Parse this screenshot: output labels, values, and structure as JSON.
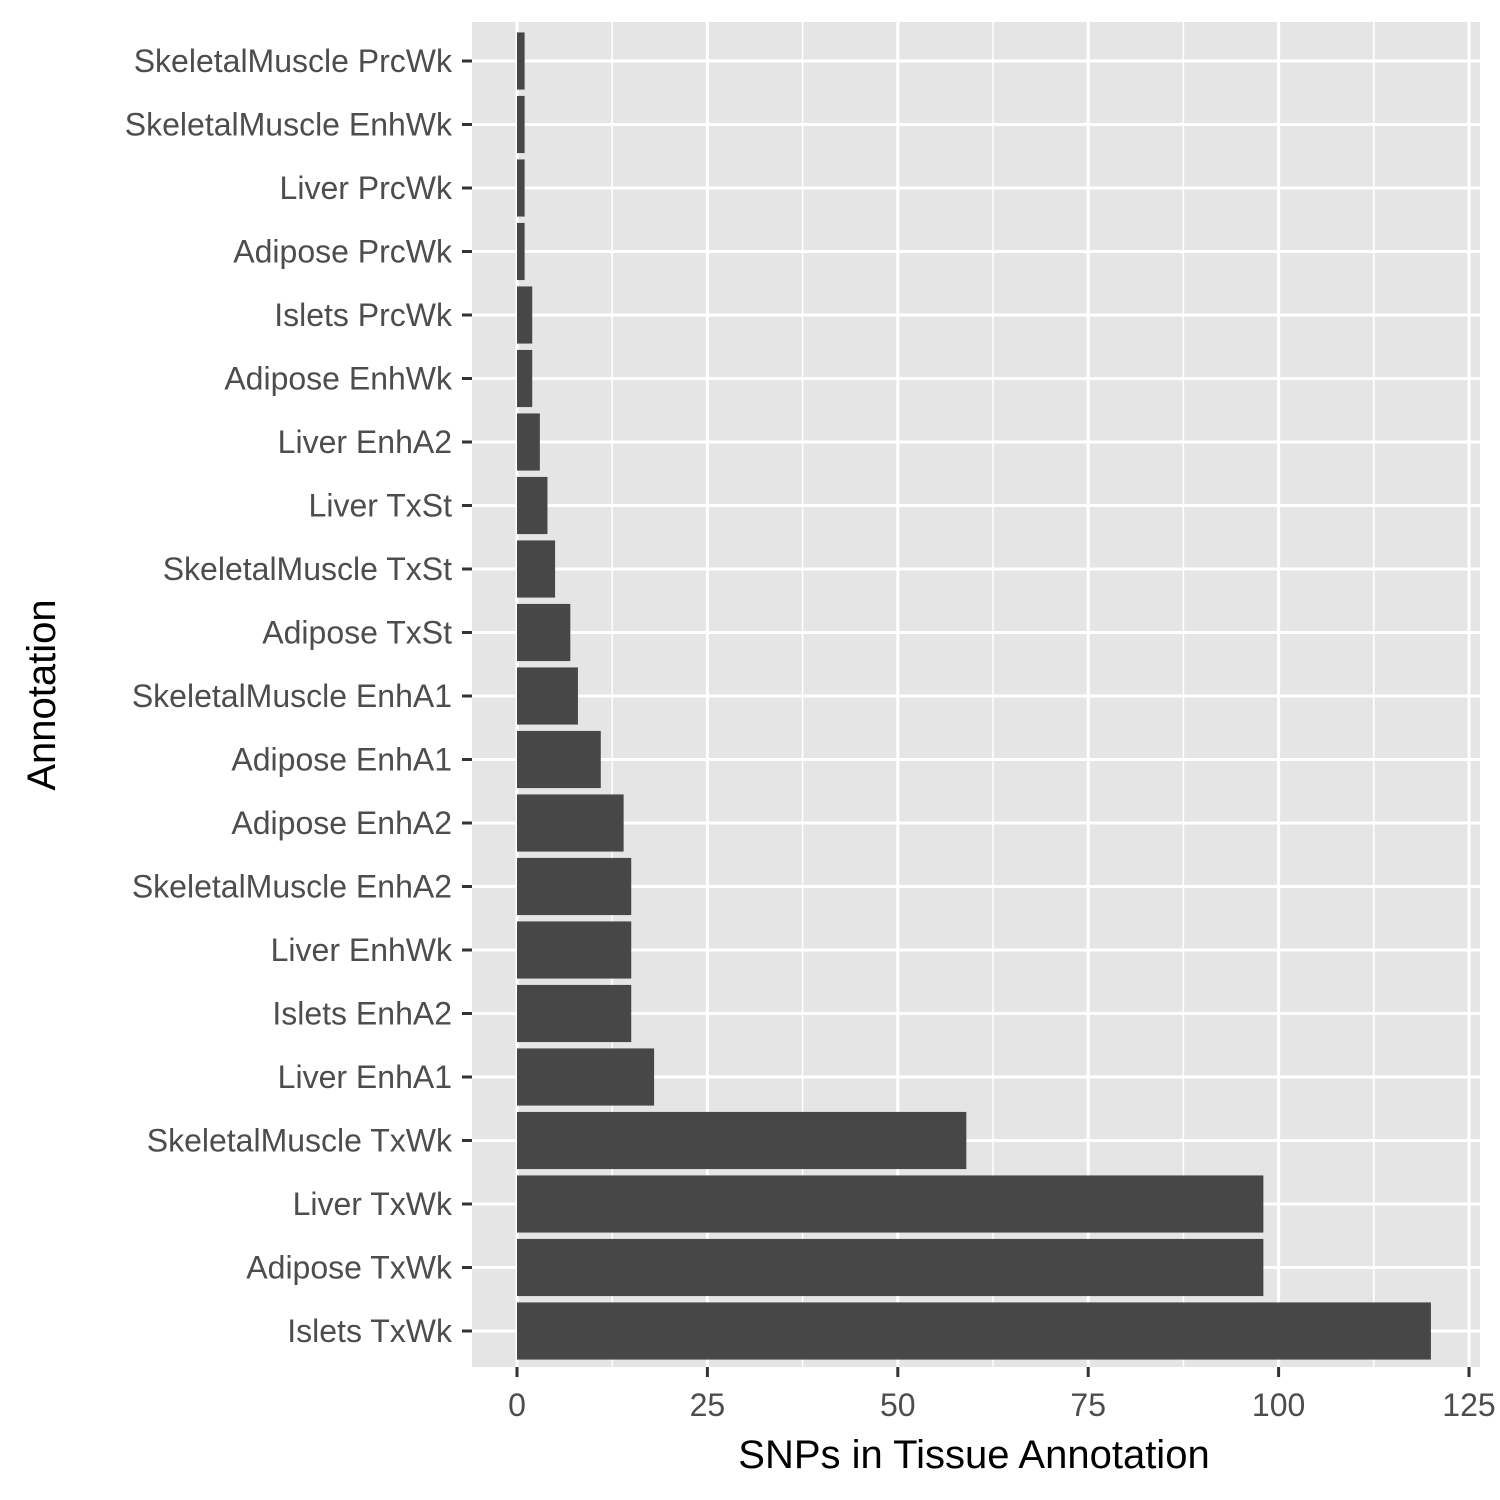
{
  "chart_data": {
    "type": "bar",
    "orientation": "horizontal",
    "title": "",
    "xlabel": "SNPs in Tissue Annotation",
    "ylabel": "Annotation",
    "xlim": [
      0,
      125
    ],
    "x_ticks": [
      0,
      25,
      50,
      75,
      100,
      125
    ],
    "grid": true,
    "legend": "none",
    "colors": {
      "bar": "#474747",
      "panel_background": "#e5e5e5",
      "gridline": "#ffffff",
      "tick_text": "#4d4d4d",
      "axis_title": "#000000"
    },
    "categories": [
      "SkeletalMuscle PrcWk",
      "SkeletalMuscle EnhWk",
      "Liver PrcWk",
      "Adipose PrcWk",
      "Islets PrcWk",
      "Adipose EnhWk",
      "Liver EnhA2",
      "Liver TxSt",
      "SkeletalMuscle TxSt",
      "Adipose TxSt",
      "SkeletalMuscle EnhA1",
      "Adipose EnhA1",
      "Adipose EnhA2",
      "SkeletalMuscle EnhA2",
      "Liver EnhWk",
      "Islets EnhA2",
      "Liver EnhA1",
      "SkeletalMuscle TxWk",
      "Liver TxWk",
      "Adipose TxWk",
      "Islets TxWk"
    ],
    "values": [
      1,
      1,
      1,
      1,
      2,
      2,
      3,
      4,
      5,
      7,
      8,
      11,
      14,
      15,
      15,
      15,
      18,
      59,
      98,
      98,
      120
    ]
  }
}
